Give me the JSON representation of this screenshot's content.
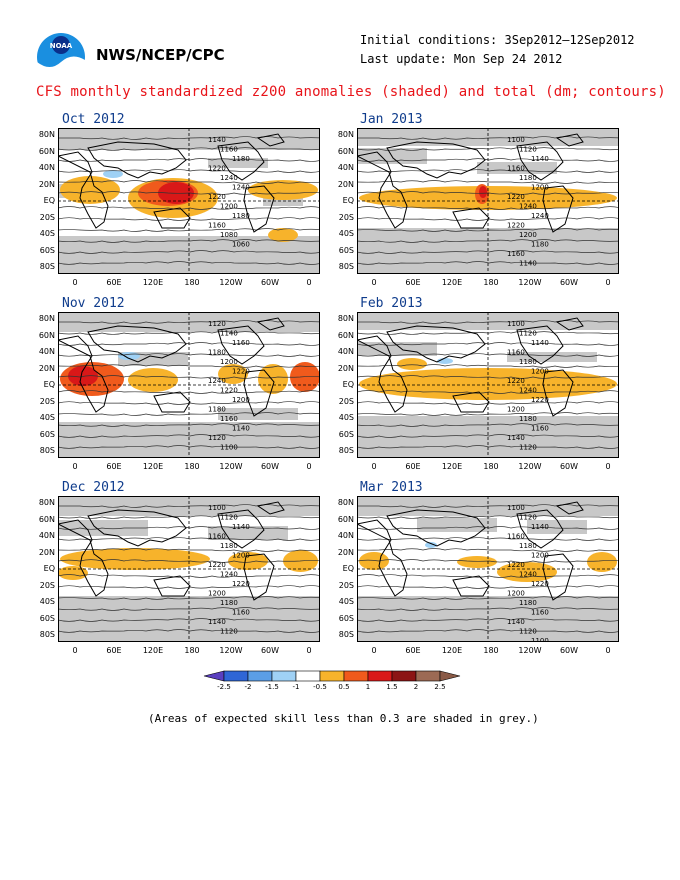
{
  "header": {
    "agency": "NWS/NCEP/CPC",
    "initial_conditions": "Initial conditions: 3Sep2012–12Sep2012",
    "last_update": "Last update: Mon Sep 24 2012",
    "title": "CFS monthly standardized z200 anomalies (shaded) and total (dm; contours)"
  },
  "axes": {
    "lat_labels": [
      "80N",
      "60N",
      "40N",
      "20N",
      "EQ",
      "20S",
      "40S",
      "60S",
      "80S"
    ],
    "lon_labels": [
      "0",
      "60E",
      "120E",
      "180",
      "120W",
      "60W",
      "0"
    ]
  },
  "panels": [
    {
      "id": "oct",
      "title": "Oct 2012",
      "contours": [
        "1140",
        "1160",
        "1180",
        "1220",
        "1240",
        "1240",
        "1220",
        "1200",
        "1180",
        "1160",
        "1080",
        "1060"
      ]
    },
    {
      "id": "jan",
      "title": "Jan 2013",
      "contours": [
        "1100",
        "1120",
        "1140",
        "1160",
        "1180",
        "1200",
        "1220",
        "1240",
        "1240",
        "1220",
        "1200",
        "1180",
        "1160",
        "1140"
      ]
    },
    {
      "id": "nov",
      "title": "Nov 2012",
      "contours": [
        "1120",
        "1140",
        "1160",
        "1180",
        "1200",
        "1220",
        "1240",
        "1220",
        "1200",
        "1180",
        "1160",
        "1140",
        "1120",
        "1100"
      ]
    },
    {
      "id": "feb",
      "title": "Feb 2013",
      "contours": [
        "1100",
        "1120",
        "1140",
        "1160",
        "1180",
        "1200",
        "1220",
        "1240",
        "1220",
        "1200",
        "1180",
        "1160",
        "1140",
        "1120"
      ]
    },
    {
      "id": "dec",
      "title": "Dec 2012",
      "contours": [
        "1100",
        "1120",
        "1140",
        "1160",
        "1180",
        "1200",
        "1220",
        "1240",
        "1220",
        "1200",
        "1180",
        "1160",
        "1140",
        "1120"
      ]
    },
    {
      "id": "mar",
      "title": "Mar 2013",
      "contours": [
        "1100",
        "1120",
        "1140",
        "1160",
        "1180",
        "1200",
        "1220",
        "1240",
        "1220",
        "1200",
        "1180",
        "1160",
        "1140",
        "1120",
        "1100"
      ]
    }
  ],
  "colorbar": {
    "labels": [
      "-2.5",
      "-2",
      "-1.5",
      "-1",
      "-0.5",
      "0.5",
      "1",
      "1.5",
      "2",
      "2.5"
    ],
    "colors": [
      "#5a3fbf",
      "#2f66d6",
      "#5b9ee6",
      "#9fd1f5",
      "#ffffff",
      "#f7b32b",
      "#f05a1c",
      "#d91818",
      "#8c1414",
      "#9c6a54",
      "#8a5a46"
    ]
  },
  "footnote": "(Areas of expected skill less than 0.3 are shaded in grey.)"
}
